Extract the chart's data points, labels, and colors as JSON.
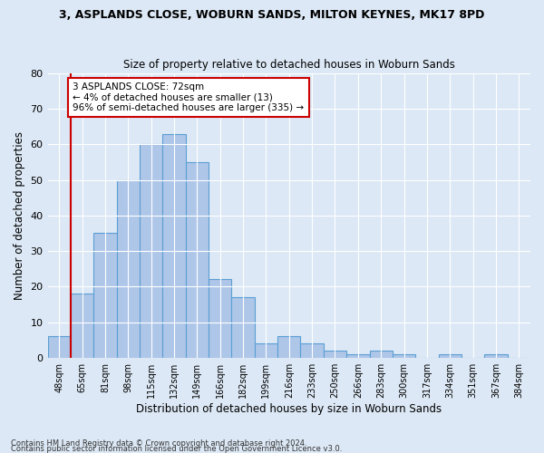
{
  "title": "3, ASPLANDS CLOSE, WOBURN SANDS, MILTON KEYNES, MK17 8PD",
  "subtitle": "Size of property relative to detached houses in Woburn Sands",
  "xlabel": "Distribution of detached houses by size in Woburn Sands",
  "ylabel": "Number of detached properties",
  "footnote1": "Contains HM Land Registry data © Crown copyright and database right 2024.",
  "footnote2": "Contains public sector information licensed under the Open Government Licence v3.0.",
  "categories": [
    "48sqm",
    "65sqm",
    "81sqm",
    "98sqm",
    "115sqm",
    "132sqm",
    "149sqm",
    "166sqm",
    "182sqm",
    "199sqm",
    "216sqm",
    "233sqm",
    "250sqm",
    "266sqm",
    "283sqm",
    "300sqm",
    "317sqm",
    "334sqm",
    "351sqm",
    "367sqm",
    "384sqm"
  ],
  "values": [
    6,
    18,
    35,
    50,
    60,
    63,
    55,
    22,
    17,
    4,
    6,
    4,
    2,
    1,
    2,
    1,
    0,
    1,
    0,
    1,
    0
  ],
  "bar_color": "#aec6e8",
  "bar_edge_color": "#5a9fd4",
  "background_color": "#dce8f5",
  "ax_background_color": "#dce8f5",
  "grid_color": "#ffffff",
  "annotation_text": "3 ASPLANDS CLOSE: 72sqm\n← 4% of detached houses are smaller (13)\n96% of semi-detached houses are larger (335) →",
  "annotation_box_color": "#ffffff",
  "annotation_box_edge_color": "#cc0000",
  "annotation_text_color": "#000000",
  "vline_x": 0.5,
  "vline_color": "#cc0000",
  "ylim": [
    0,
    80
  ],
  "yticks": [
    0,
    10,
    20,
    30,
    40,
    50,
    60,
    70,
    80
  ]
}
